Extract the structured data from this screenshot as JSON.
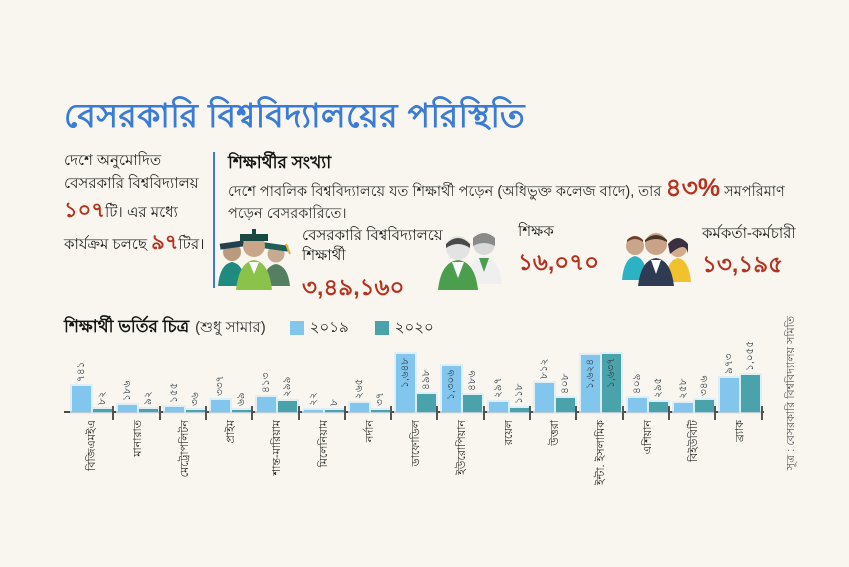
{
  "page_title": "বেসরকারি বিশ্ববিদ্যালয়ের পরিস্থিতি",
  "left_summary": {
    "text1": "দেশে অনুমোদিত বেসরকারি বিশ্ববিদ্যালয় ",
    "num1": "১০৭",
    "suffix1": "টি। ",
    "text2": "এর মধ্যে কার্যক্রম চলছে ",
    "num2": "৯৭",
    "suffix2": "টির।"
  },
  "students_section": {
    "heading": "শিক্ষার্থীর সংখ্যা",
    "desc_before": "দেশে পাবলিক বিশ্ববিদ্যালয়ে যত শিক্ষার্থী পড়েন (অধিভুক্ত কলেজ বাদে), তার ",
    "percent": "৪৩%",
    "desc_after": " সমপরিমাণ পড়েন বেসরকারিতে।"
  },
  "stats": [
    {
      "icon": "students-icon",
      "label": "বেসরকারি বিশ্ববিদ্যালয়ে শিক্ষার্থী",
      "value": "৩,৪৯,১৬০"
    },
    {
      "icon": "teachers-icon",
      "label": "শিক্ষক",
      "value": "১৬,০৭০"
    },
    {
      "icon": "staff-icon",
      "label": "কর্মকর্তা-কর্মচারী",
      "value": "১৩,১৯৫"
    }
  ],
  "chart_data": {
    "type": "bar",
    "title": "শিক্ষার্থী ভর্তির চিত্র",
    "subtitle": "(শুধু সামার)",
    "legend_position": "top",
    "grid": false,
    "ylim": [
      0,
      1700
    ],
    "categories": [
      "বিজিএমইএ",
      "মানারাত",
      "মেট্রোপলিটন",
      "প্রাইম",
      "শান্ত-মারিয়াম",
      "মিলেনিয়াম",
      "নর্দান",
      "ডাফোডিল",
      "ইউরোপিয়ান",
      "রয়েল",
      "উত্তরা",
      "ইন্টা. ইসলামিক",
      "এশিয়ান",
      "বিইউবিটি",
      "ব্র্যাক"
    ],
    "series": [
      {
        "name": "২০১৯",
        "color": "#82c6ee",
        "values": [
          741,
          186,
          155,
          337,
          413,
          22,
          265,
          1648,
          1306,
          297,
          812,
          1624,
          409,
          258,
          973
        ],
        "labels": [
          "৭৪১",
          "১৮৬",
          "১৫৫",
          "৩৩৭",
          "৪১৩",
          "২২",
          "২৬৫",
          "১,৬৪৮",
          "১,৩০৬",
          "২৯৭",
          "৮১২",
          "১,৬২৪",
          "৪০৯",
          "২৫৮",
          "৯৭৩"
        ]
      },
      {
        "name": "২০২০",
        "color": "#4aa3aa",
        "values": [
          82,
          92,
          36,
          69,
          299,
          8,
          37,
          498,
          486,
          118,
          408,
          1637,
          295,
          346,
          1055
        ],
        "labels": [
          "৮২",
          "৯২",
          "৩৬",
          "৬৯",
          "২৯৯",
          "৮",
          "৩৭",
          "৪৯৮",
          "৪৮৬",
          "১১৮",
          "৪০৮",
          "১,৬৩৭",
          "২৯৫",
          "৩৪৬",
          "১,০৫৫"
        ]
      }
    ]
  },
  "source": "সূত্র : বেসরকারি বিশ্ববিদ্যালয় সমিতি",
  "colors": {
    "accent_blue": "#3a7bd5",
    "accent_red": "#b5321f",
    "bar_2019": "#82c6ee",
    "bar_2020": "#4aa3aa",
    "background": "#f8f6ef"
  }
}
